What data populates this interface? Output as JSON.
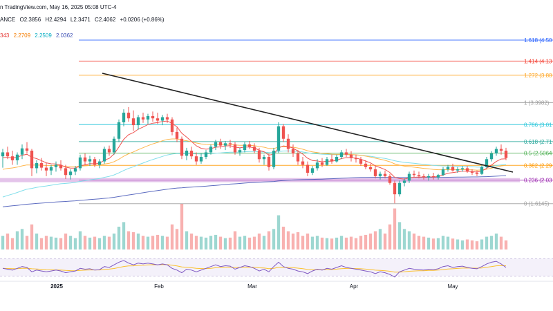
{
  "header": {
    "source": "n TradingView.com, May 16, 2025 05:08 UTC-4",
    "ohlc_prefix": "ANCE",
    "open": "O2.3856",
    "high": "H2.4294",
    "low": "L2.3471",
    "close": "C2.4062",
    "change": "+0.0206 (+0.86%)"
  },
  "indicators": [
    {
      "value": "343",
      "color": "#e53935"
    },
    {
      "value": "2.2709",
      "color": "#f57c00"
    },
    {
      "value": "2.2509",
      "color": "#26c6da"
    },
    {
      "value": "2.0362",
      "color": "#3f51b5"
    }
  ],
  "colors": {
    "up": "#26a69a",
    "down": "#ef5350",
    "ema_fast": "#ef5350",
    "ema_mid": "#ffb74d",
    "ema_slow": "#80deea",
    "ema_200": "#5c6bc0",
    "trendline": "#222222",
    "support_zone": "#ce93d8",
    "rsi": "#7e57c2",
    "rsi_ma": "#fbc02d"
  },
  "chart_data": {
    "type": "candlestick",
    "y_range_price": [
      1.55,
      4.72
    ],
    "x_ticks": [
      "2025",
      "Feb",
      "Mar",
      "Apr",
      "May"
    ],
    "fib_levels": [
      {
        "ratio": 1.618,
        "label": "1.618 (4.50",
        "price": 4.5,
        "color": "#2962ff"
      },
      {
        "ratio": 1.414,
        "label": "1.414 (4.13",
        "price": 4.13,
        "color": "#f44336"
      },
      {
        "ratio": 1.272,
        "label": "1.272 (3.88",
        "price": 3.88,
        "color": "#ffa726"
      },
      {
        "ratio": 1,
        "label": "1 (3.3982)",
        "price": 3.3982,
        "color": "#9e9e9e"
      },
      {
        "ratio": 0.786,
        "label": "0.786 (3.01",
        "price": 3.01,
        "color": "#26c6da"
      },
      {
        "ratio": 0.618,
        "label": "0.618 (2.71",
        "price": 2.71,
        "color": "#26a69a"
      },
      {
        "ratio": 0.5,
        "label": "0.5 (2.5064",
        "price": 2.5064,
        "color": "#4caf50"
      },
      {
        "ratio": 0.382,
        "label": "0.382 (2.29",
        "price": 2.29,
        "color": "#ff9800"
      },
      {
        "ratio": 0.236,
        "label": "0.236 (2.03",
        "price": 2.03,
        "color": "#9c27b0"
      },
      {
        "ratio": 0,
        "label": "0 (1.6145)",
        "price": 1.6145,
        "color": "#9e9e9e"
      }
    ],
    "candles": [
      [
        2.45,
        2.58,
        2.25,
        2.52
      ],
      [
        2.52,
        2.62,
        2.4,
        2.45
      ],
      [
        2.45,
        2.55,
        2.3,
        2.38
      ],
      [
        2.38,
        2.52,
        2.3,
        2.48
      ],
      [
        2.48,
        2.66,
        2.4,
        2.59
      ],
      [
        2.59,
        2.7,
        2.5,
        2.55
      ],
      [
        2.55,
        2.58,
        2.1,
        2.24
      ],
      [
        2.24,
        2.38,
        2.15,
        2.33
      ],
      [
        2.33,
        2.42,
        2.2,
        2.25
      ],
      [
        2.25,
        2.34,
        2.1,
        2.2
      ],
      [
        2.2,
        2.3,
        2.12,
        2.26
      ],
      [
        2.26,
        2.36,
        2.18,
        2.3
      ],
      [
        2.3,
        2.38,
        2.2,
        2.24
      ],
      [
        2.24,
        2.3,
        2.05,
        2.12
      ],
      [
        2.12,
        2.22,
        2.04,
        2.18
      ],
      [
        2.18,
        2.28,
        2.12,
        2.24
      ],
      [
        2.24,
        2.48,
        2.2,
        2.43
      ],
      [
        2.43,
        2.5,
        2.3,
        2.36
      ],
      [
        2.36,
        2.46,
        2.28,
        2.4
      ],
      [
        2.4,
        2.44,
        2.26,
        2.3
      ],
      [
        2.3,
        2.4,
        2.24,
        2.36
      ],
      [
        2.36,
        2.62,
        2.32,
        2.58
      ],
      [
        2.58,
        2.64,
        2.46,
        2.52
      ],
      [
        2.52,
        2.8,
        2.48,
        2.76
      ],
      [
        2.76,
        3.1,
        2.7,
        3.05
      ],
      [
        3.05,
        3.28,
        2.98,
        3.22
      ],
      [
        3.22,
        3.32,
        3.06,
        3.12
      ],
      [
        3.12,
        3.26,
        2.9,
        3.0
      ],
      [
        3.0,
        3.18,
        2.92,
        3.14
      ],
      [
        3.14,
        3.22,
        3.04,
        3.1
      ],
      [
        3.1,
        3.2,
        3.02,
        3.16
      ],
      [
        3.16,
        3.24,
        3.06,
        3.12
      ],
      [
        3.12,
        3.22,
        3.02,
        3.08
      ],
      [
        3.08,
        3.18,
        3.0,
        3.14
      ],
      [
        3.14,
        3.2,
        3.04,
        3.1
      ],
      [
        3.1,
        3.14,
        2.82,
        2.88
      ],
      [
        2.88,
        2.96,
        2.7,
        2.76
      ],
      [
        2.76,
        2.8,
        2.4,
        2.46
      ],
      [
        2.46,
        2.6,
        2.38,
        2.55
      ],
      [
        2.55,
        2.62,
        2.4,
        2.45
      ],
      [
        2.45,
        2.52,
        2.3,
        2.36
      ],
      [
        2.36,
        2.5,
        2.32,
        2.44
      ],
      [
        2.44,
        2.56,
        2.4,
        2.52
      ],
      [
        2.52,
        2.66,
        2.48,
        2.62
      ],
      [
        2.62,
        2.74,
        2.56,
        2.7
      ],
      [
        2.7,
        2.76,
        2.58,
        2.64
      ],
      [
        2.64,
        2.72,
        2.56,
        2.68
      ],
      [
        2.68,
        2.74,
        2.6,
        2.66
      ],
      [
        2.66,
        2.7,
        2.48,
        2.52
      ],
      [
        2.52,
        2.6,
        2.46,
        2.56
      ],
      [
        2.56,
        2.7,
        2.52,
        2.66
      ],
      [
        2.66,
        2.72,
        2.58,
        2.62
      ],
      [
        2.62,
        2.68,
        2.5,
        2.55
      ],
      [
        2.55,
        2.6,
        2.34,
        2.4
      ],
      [
        2.4,
        2.48,
        2.3,
        2.44
      ],
      [
        2.44,
        2.5,
        2.2,
        2.26
      ],
      [
        2.26,
        2.6,
        2.22,
        2.55
      ],
      [
        2.55,
        3.05,
        2.5,
        2.98
      ],
      [
        2.98,
        3.02,
        2.7,
        2.76
      ],
      [
        2.76,
        2.84,
        2.52,
        2.58
      ],
      [
        2.58,
        2.66,
        2.44,
        2.5
      ],
      [
        2.5,
        2.56,
        2.3,
        2.36
      ],
      [
        2.36,
        2.44,
        2.24,
        2.3
      ],
      [
        2.3,
        2.36,
        2.1,
        2.16
      ],
      [
        2.16,
        2.28,
        2.12,
        2.24
      ],
      [
        2.24,
        2.4,
        2.2,
        2.34
      ],
      [
        2.34,
        2.42,
        2.26,
        2.3
      ],
      [
        2.3,
        2.44,
        2.28,
        2.4
      ],
      [
        2.4,
        2.48,
        2.32,
        2.36
      ],
      [
        2.36,
        2.48,
        2.34,
        2.44
      ],
      [
        2.44,
        2.56,
        2.4,
        2.52
      ],
      [
        2.52,
        2.58,
        2.44,
        2.48
      ],
      [
        2.48,
        2.54,
        2.36,
        2.42
      ],
      [
        2.42,
        2.48,
        2.34,
        2.4
      ],
      [
        2.4,
        2.44,
        2.28,
        2.32
      ],
      [
        2.32,
        2.38,
        2.22,
        2.26
      ],
      [
        2.26,
        2.32,
        2.18,
        2.22
      ],
      [
        2.22,
        2.28,
        2.06,
        2.1
      ],
      [
        2.1,
        2.18,
        2.04,
        2.14
      ],
      [
        2.14,
        2.2,
        2.06,
        2.1
      ],
      [
        2.1,
        2.14,
        1.95,
        1.98
      ],
      [
        1.98,
        2.02,
        1.62,
        1.78
      ],
      [
        1.78,
        2.02,
        1.74,
        1.98
      ],
      [
        1.98,
        2.06,
        1.92,
        2.02
      ],
      [
        2.02,
        2.18,
        1.98,
        2.14
      ],
      [
        2.14,
        2.2,
        2.08,
        2.12
      ],
      [
        2.12,
        2.18,
        2.06,
        2.1
      ],
      [
        2.1,
        2.14,
        2.04,
        2.08
      ],
      [
        2.08,
        2.14,
        2.02,
        2.1
      ],
      [
        2.1,
        2.16,
        2.04,
        2.08
      ],
      [
        2.08,
        2.14,
        2.04,
        2.12
      ],
      [
        2.12,
        2.26,
        2.1,
        2.22
      ],
      [
        2.22,
        2.3,
        2.18,
        2.26
      ],
      [
        2.26,
        2.32,
        2.18,
        2.2
      ],
      [
        2.2,
        2.26,
        2.16,
        2.22
      ],
      [
        2.22,
        2.28,
        2.18,
        2.24
      ],
      [
        2.24,
        2.28,
        2.16,
        2.18
      ],
      [
        2.18,
        2.22,
        2.12,
        2.16
      ],
      [
        2.16,
        2.2,
        2.1,
        2.14
      ],
      [
        2.14,
        2.3,
        2.12,
        2.26
      ],
      [
        2.26,
        2.44,
        2.24,
        2.4
      ],
      [
        2.4,
        2.54,
        2.36,
        2.5
      ],
      [
        2.5,
        2.62,
        2.46,
        2.58
      ],
      [
        2.58,
        2.66,
        2.48,
        2.55
      ],
      [
        2.55,
        2.6,
        2.38,
        2.42
      ]
    ],
    "volume": [
      0.3,
      0.35,
      0.25,
      0.4,
      0.45,
      0.3,
      0.55,
      0.35,
      0.25,
      0.3,
      0.28,
      0.26,
      0.25,
      0.35,
      0.3,
      0.25,
      0.4,
      0.3,
      0.26,
      0.28,
      0.25,
      0.3,
      0.28,
      0.35,
      0.5,
      0.6,
      0.4,
      0.38,
      0.35,
      0.3,
      0.28,
      0.3,
      0.32,
      0.3,
      0.28,
      0.55,
      0.45,
      1.0,
      0.4,
      0.35,
      0.3,
      0.28,
      0.26,
      0.3,
      0.32,
      0.28,
      0.25,
      0.26,
      0.4,
      0.28,
      0.3,
      0.26,
      0.28,
      0.35,
      0.3,
      0.4,
      0.45,
      0.75,
      0.5,
      0.4,
      0.35,
      0.38,
      0.3,
      0.35,
      0.28,
      0.3,
      0.26,
      0.25,
      0.24,
      0.26,
      0.3,
      0.26,
      0.28,
      0.25,
      0.3,
      0.32,
      0.35,
      0.4,
      0.45,
      0.35,
      0.55,
      0.9,
      0.6,
      0.45,
      0.4,
      0.35,
      0.3,
      0.28,
      0.26,
      0.24,
      0.25,
      0.3,
      0.28,
      0.24,
      0.22,
      0.2,
      0.22,
      0.2,
      0.18,
      0.22,
      0.28,
      0.3,
      0.35,
      0.28,
      0.2
    ],
    "rsi": [
      48,
      46,
      44,
      48,
      52,
      50,
      40,
      44,
      42,
      40,
      42,
      44,
      42,
      38,
      40,
      42,
      48,
      46,
      47,
      44,
      45,
      52,
      50,
      56,
      62,
      66,
      60,
      56,
      60,
      58,
      60,
      58,
      56,
      58,
      56,
      48,
      44,
      38,
      46,
      44,
      40,
      44,
      48,
      52,
      56,
      52,
      54,
      53,
      46,
      50,
      54,
      52,
      48,
      42,
      46,
      40,
      52,
      62,
      52,
      48,
      46,
      42,
      40,
      36,
      42,
      46,
      44,
      48,
      46,
      50,
      54,
      50,
      48,
      46,
      44,
      42,
      40,
      36,
      40,
      38,
      34,
      28,
      40,
      44,
      48,
      46,
      45,
      44,
      46,
      45,
      47,
      52,
      54,
      50,
      52,
      53,
      50,
      48,
      47,
      52,
      58,
      62,
      64,
      58,
      50
    ]
  }
}
